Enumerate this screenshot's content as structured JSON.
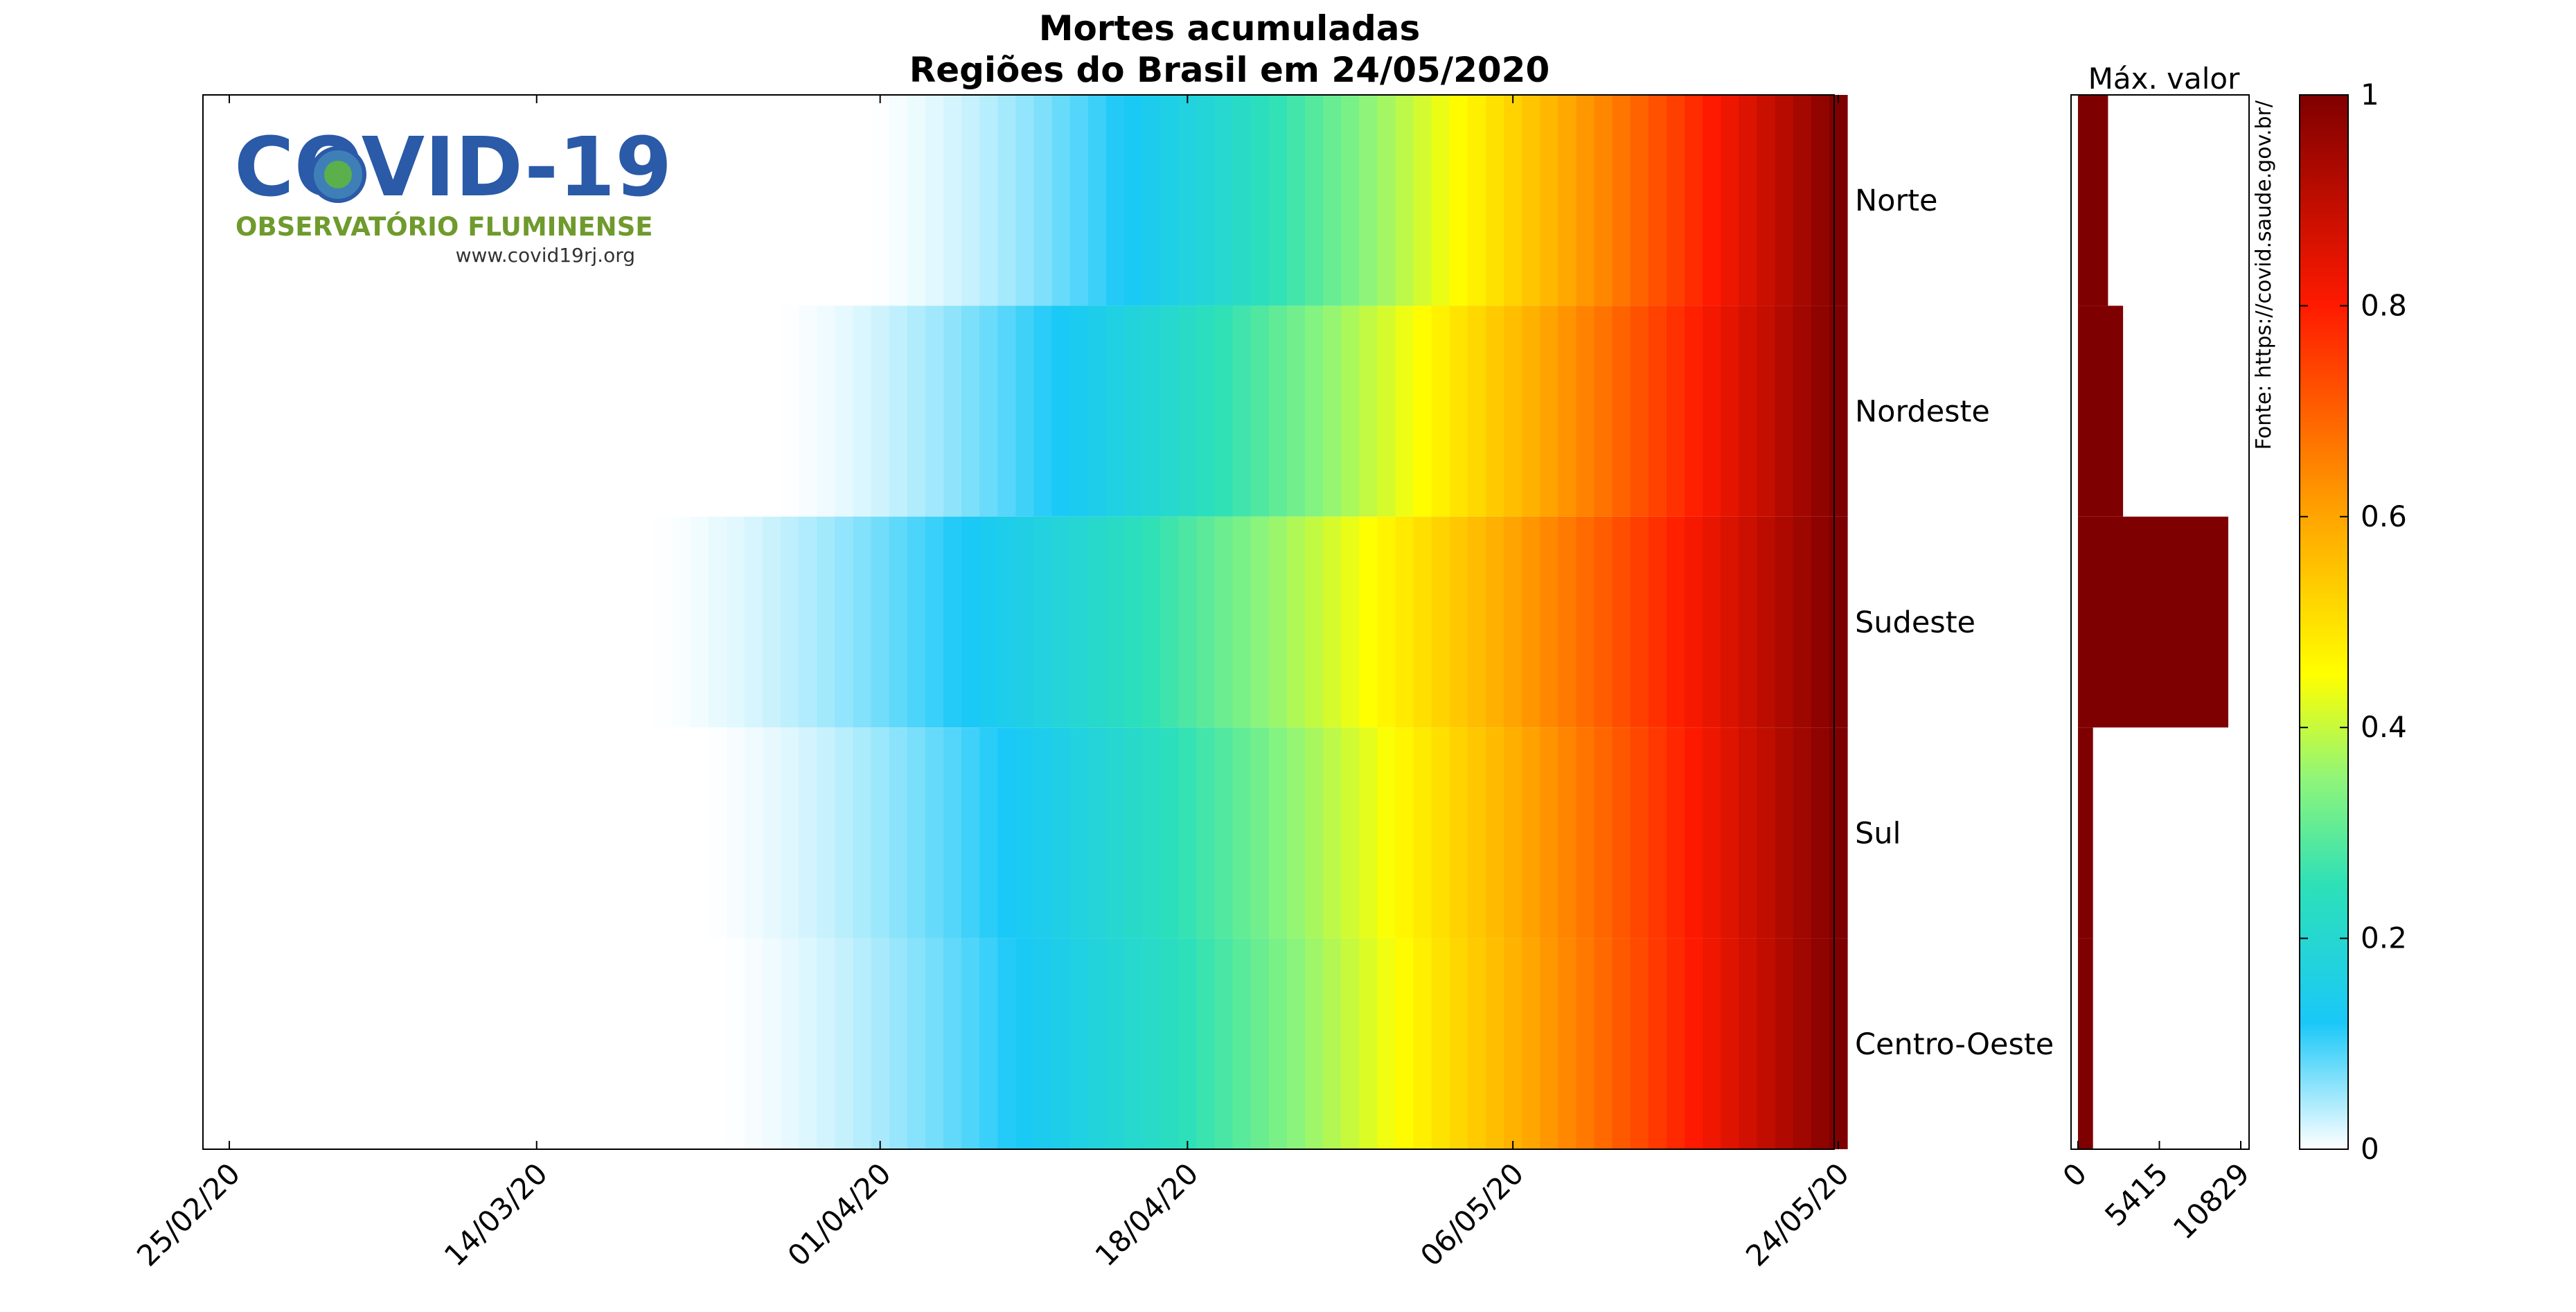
{
  "chart_data": {
    "type": "heatmap",
    "title": "Mortes acumuladas",
    "subtitle": "Regiões do Brasil em 24/05/2020",
    "regions": [
      "Norte",
      "Nordeste",
      "Sudeste",
      "Sul",
      "Centro-Oeste"
    ],
    "heatmap": {
      "x_start": "25/02/2020",
      "x_end": "24/05/2020",
      "x_ticks": [
        "25/02/20",
        "14/03/20",
        "01/04/20",
        "18/04/20",
        "06/05/20",
        "24/05/20"
      ],
      "x_tick_days": [
        0,
        17,
        36,
        53,
        71,
        89
      ],
      "value_description": "normalized cumulative deaths (0 to 1)",
      "first_death": [
        "31/03/2020",
        "26/03/2020",
        "19/03/2020",
        "22/03/2020",
        "23/03/2020"
      ],
      "color_stops": [
        [
          0.0,
          "#ffffff"
        ],
        [
          0.12,
          "#1ac8f8"
        ],
        [
          0.25,
          "#2de0b8"
        ],
        [
          0.35,
          "#8ef57a"
        ],
        [
          0.45,
          "#ffff00"
        ],
        [
          0.6,
          "#ffa500"
        ],
        [
          0.8,
          "#ff1a00"
        ],
        [
          1.0,
          "#7f0000"
        ]
      ]
    },
    "bar_panel": {
      "label": "Máx. valor",
      "ticks": [
        "0",
        "5415",
        "10829"
      ],
      "xlim": [
        0,
        10829
      ],
      "values": [
        2000,
        3000,
        10000,
        1000,
        1000
      ],
      "color": "#7f0000"
    },
    "colorbar": {
      "ticks": [
        "0",
        "0.2",
        "0.4",
        "0.6",
        "0.8",
        "1"
      ],
      "range": [
        0,
        1
      ]
    },
    "source_text": "Fonte: https://covid.saude.gov.br/",
    "logo": {
      "title": "COVID-19",
      "subtitle": "OBSERVATÓRIO FLUMINENSE",
      "url": "www.covid19rj.org"
    }
  }
}
